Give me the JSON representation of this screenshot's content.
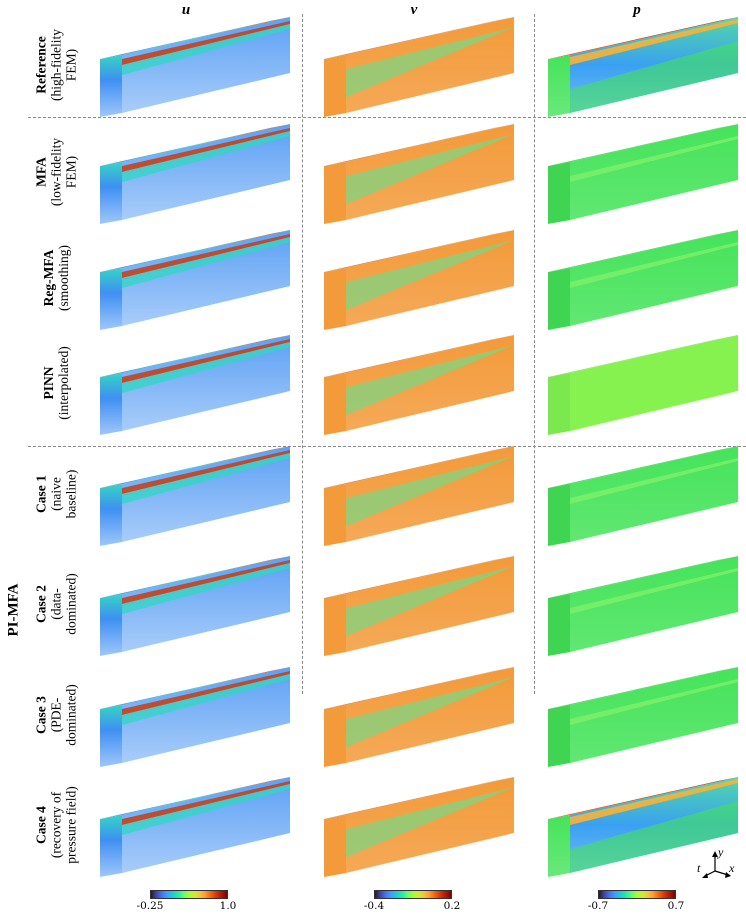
{
  "columns": [
    {
      "label": "u"
    },
    {
      "label": "v"
    },
    {
      "label": "p"
    }
  ],
  "rows": [
    {
      "bold": "Reference",
      "sub": [
        "(high-fidelity",
        "FEM)"
      ]
    },
    {
      "bold": "MFA",
      "sub": [
        "(low-fidelity",
        "FEM)"
      ]
    },
    {
      "bold": "Reg-MFA",
      "sub": [
        "(smoothing)"
      ]
    },
    {
      "bold": "PINN",
      "sub": [
        "(interpolated)"
      ]
    },
    {
      "bold": "Case 1",
      "sub": [
        "(naive",
        "baseline)"
      ]
    },
    {
      "bold": "Case 2",
      "sub": [
        "(data-",
        "dominated)"
      ]
    },
    {
      "bold": "Case 3",
      "sub": [
        "(PDE-",
        "dominated)"
      ]
    },
    {
      "bold": "Case 4",
      "sub": [
        "(recovery of",
        "pressure field)"
      ]
    }
  ],
  "group_label": "PI-MFA",
  "colorbars": [
    {
      "min": "-0.25",
      "max": "1.0"
    },
    {
      "min": "-0.4",
      "max": "0.2"
    },
    {
      "min": "-0.7",
      "max": "0.7"
    }
  ],
  "axes": {
    "t": "t",
    "x": "x",
    "y": "y"
  },
  "colors": {
    "u_face": "#3f8ff2",
    "u_stripe": "#c4431a",
    "u_core": "#34d5c6",
    "v_face": "#f39a3a",
    "v_core": "#8ccf7a",
    "v_dark": "#b21c08",
    "p_green": "#45e35a",
    "p_light": "#86f24f",
    "p_red": "#c21e0b",
    "p_blue": "#3aa0f2"
  },
  "fields": [
    [
      "u",
      "v",
      "p_ref"
    ],
    [
      "u",
      "v",
      "p_green"
    ],
    [
      "u",
      "v",
      "p_green"
    ],
    [
      "u",
      "v",
      "p_light"
    ],
    [
      "u",
      "v",
      "p_green"
    ],
    [
      "u",
      "v",
      "p_green"
    ],
    [
      "u",
      "v",
      "p_green"
    ],
    [
      "u",
      "v",
      "p_ref"
    ]
  ]
}
